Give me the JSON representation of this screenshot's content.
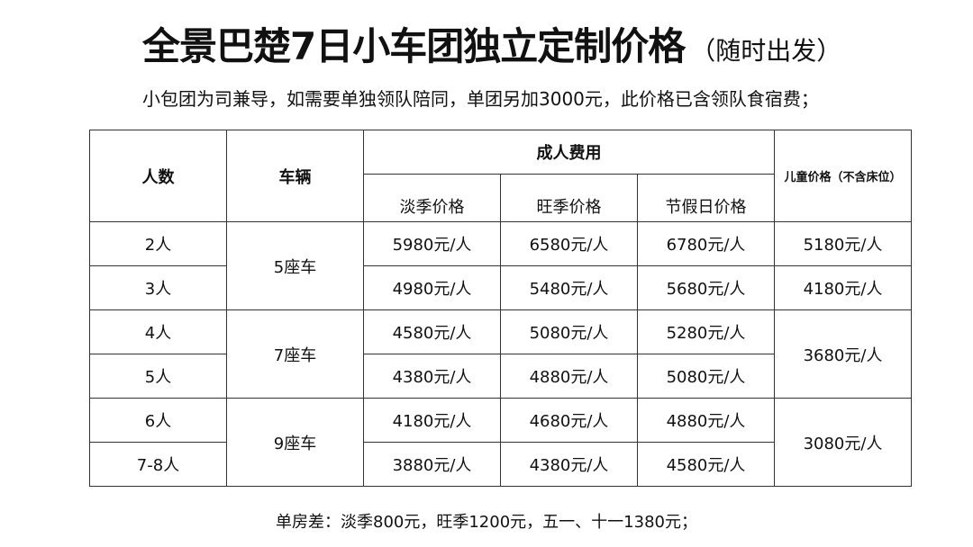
{
  "title": {
    "main": "全景巴楚7日小车团独立定制价格",
    "sub": "（随时出发）"
  },
  "note": "小包团为司兼导，如需要单独领队陪同，单团另加3000元，此价格已含领队食宿费；",
  "table": {
    "headers": {
      "people": "人数",
      "vehicle": "车辆",
      "adult_group": "成人费用",
      "off_season": "淡季价格",
      "peak_season": "旺季价格",
      "holiday": "节假日价格",
      "child": "儿童价格（不含床位）"
    },
    "rows": [
      {
        "people": "2人",
        "vehicle": "5座车",
        "off": "5980元/人",
        "peak": "6580元/人",
        "holiday": "6780元/人",
        "child": "5180元/人"
      },
      {
        "people": "3人",
        "off": "4980元/人",
        "peak": "5480元/人",
        "holiday": "5680元/人",
        "child": "4180元/人"
      },
      {
        "people": "4人",
        "vehicle": "7座车",
        "off": "4580元/人",
        "peak": "5080元/人",
        "holiday": "5280元/人",
        "child": "3680元/人"
      },
      {
        "people": "5人",
        "off": "4380元/人",
        "peak": "4880元/人",
        "holiday": "5080元/人"
      },
      {
        "people": "6人",
        "vehicle": "9座车",
        "off": "4180元/人",
        "peak": "4680元/人",
        "holiday": "4880元/人",
        "child": "3080元/人"
      },
      {
        "people": "7-8人",
        "off": "3880元/人",
        "peak": "4380元/人",
        "holiday": "4580元/人"
      }
    ]
  },
  "footer": "单房差：淡季800元，旺季1200元，五一、十一1380元；"
}
